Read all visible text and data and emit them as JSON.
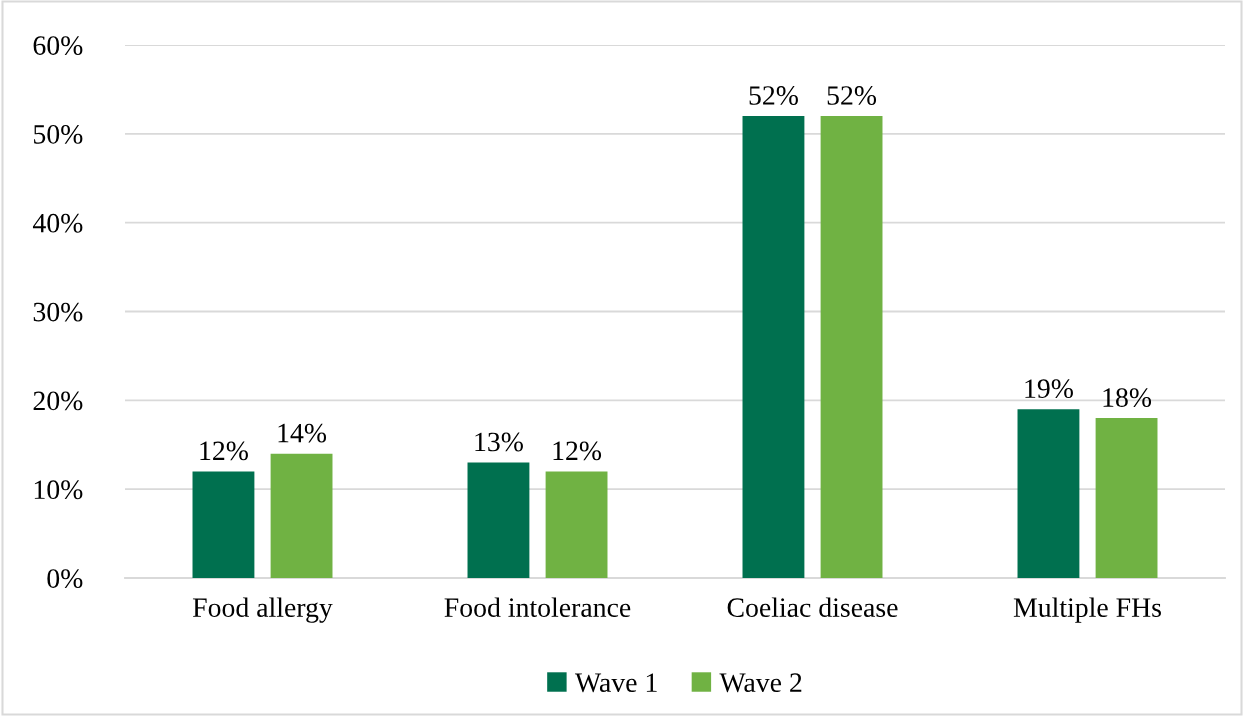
{
  "chart_data": {
    "type": "bar",
    "categories": [
      "Food allergy",
      "Food intolerance",
      "Coeliac disease",
      "Multiple FHs"
    ],
    "series": [
      {
        "name": "Wave 1",
        "color": "#00704f",
        "values": [
          12,
          13,
          52,
          19
        ],
        "value_labels": [
          "12%",
          "13%",
          "52%",
          "19%"
        ]
      },
      {
        "name": "Wave 2",
        "color": "#70b243",
        "values": [
          14,
          12,
          52,
          18
        ],
        "value_labels": [
          "14%",
          "12%",
          "52%",
          "18%"
        ]
      }
    ],
    "ylim": [
      0,
      60
    ],
    "yticks": [
      {
        "value": 0,
        "label": "0%"
      },
      {
        "value": 10,
        "label": "10%"
      },
      {
        "value": 20,
        "label": "20%"
      },
      {
        "value": 30,
        "label": "30%"
      },
      {
        "value": 40,
        "label": "40%"
      },
      {
        "value": 50,
        "label": "50%"
      },
      {
        "value": 60,
        "label": "60%"
      }
    ],
    "grid": "y",
    "legend": "bottom"
  }
}
